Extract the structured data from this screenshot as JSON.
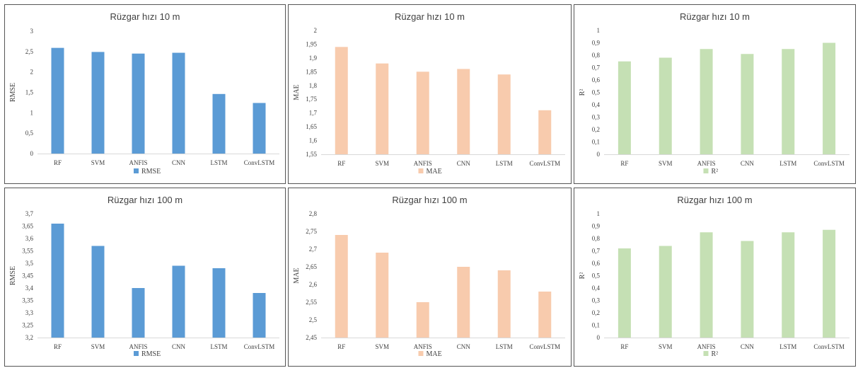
{
  "chart_data": [
    {
      "type": "bar",
      "title": "Rüzgar hızı 10 m",
      "ylabel": "RMSE",
      "legend": "RMSE",
      "legend_position": "bottom",
      "color": "#5b9bd5",
      "categories": [
        "RF",
        "SVM",
        "ANFIS",
        "CNN",
        "LSTM",
        "ConvLSTM"
      ],
      "values": [
        2.59,
        2.49,
        2.45,
        2.47,
        1.46,
        1.24
      ],
      "ylim": [
        0,
        3
      ],
      "yticks": [
        "0",
        "0,5",
        "1",
        "1,5",
        "2",
        "2,5",
        "3"
      ]
    },
    {
      "type": "bar",
      "title": "Rüzgar hızı 10 m",
      "ylabel": "MAE",
      "legend": "MAE",
      "legend_position": "bottom",
      "color": "#f8cbad",
      "categories": [
        "RF",
        "SVM",
        "ANFIS",
        "CNN",
        "LSTM",
        "ConvLSTM"
      ],
      "values": [
        1.94,
        1.88,
        1.85,
        1.86,
        1.84,
        1.71
      ],
      "ylim": [
        1.55,
        2
      ],
      "yticks": [
        "1,55",
        "1,6",
        "1,65",
        "1,7",
        "1,75",
        "1,8",
        "1,85",
        "1,9",
        "1,95",
        "2"
      ]
    },
    {
      "type": "bar",
      "title": "Rüzgar hızı 10 m",
      "ylabel": "R²",
      "legend": "R²",
      "legend_position": "bottom",
      "color": "#c5e0b4",
      "categories": [
        "RF",
        "SVM",
        "ANFIS",
        "CNN",
        "LSTM",
        "ConvLSTM"
      ],
      "values": [
        0.75,
        0.78,
        0.85,
        0.81,
        0.85,
        0.9
      ],
      "ylim": [
        0,
        1
      ],
      "yticks": [
        "0",
        "0,1",
        "0,2",
        "0,3",
        "0,4",
        "0,5",
        "0,6",
        "0,7",
        "0,8",
        "0,9",
        "1"
      ]
    },
    {
      "type": "bar",
      "title": "Rüzgar hızı 100 m",
      "ylabel": "RMSE",
      "legend": "RMSE",
      "legend_position": "bottom",
      "color": "#5b9bd5",
      "categories": [
        "RF",
        "SVM",
        "ANFIS",
        "CNN",
        "LSTM",
        "ConvLSTM"
      ],
      "values": [
        3.66,
        3.57,
        3.4,
        3.49,
        3.48,
        3.38
      ],
      "ylim": [
        3.2,
        3.7
      ],
      "yticks": [
        "3,2",
        "3,25",
        "3,3",
        "3,35",
        "3,4",
        "3,45",
        "3,5",
        "3,55",
        "3,6",
        "3,65",
        "3,7"
      ]
    },
    {
      "type": "bar",
      "title": "Rüzgar hızı 100 m",
      "ylabel": "MAE",
      "legend": "MAE",
      "legend_position": "bottom",
      "color": "#f8cbad",
      "categories": [
        "RF",
        "SVM",
        "ANFIS",
        "CNN",
        "LSTM",
        "ConvLSTM"
      ],
      "values": [
        2.74,
        2.69,
        2.55,
        2.65,
        2.64,
        2.58
      ],
      "ylim": [
        2.45,
        2.8
      ],
      "yticks": [
        "2,45",
        "2,5",
        "2,55",
        "2,6",
        "2,65",
        "2,7",
        "2,75",
        "2,8"
      ]
    },
    {
      "type": "bar",
      "title": "Rüzgar hızı 100 m",
      "ylabel": "R²",
      "legend": "R²",
      "legend_position": "bottom",
      "color": "#c5e0b4",
      "categories": [
        "RF",
        "SVM",
        "ANFIS",
        "CNN",
        "LSTM",
        "ConvLSTM"
      ],
      "values": [
        0.72,
        0.74,
        0.85,
        0.78,
        0.85,
        0.87
      ],
      "ylim": [
        0,
        1
      ],
      "yticks": [
        "0",
        "0,1",
        "0,2",
        "0,3",
        "0,4",
        "0,5",
        "0,6",
        "0,7",
        "0,8",
        "0,9",
        "1"
      ]
    }
  ]
}
